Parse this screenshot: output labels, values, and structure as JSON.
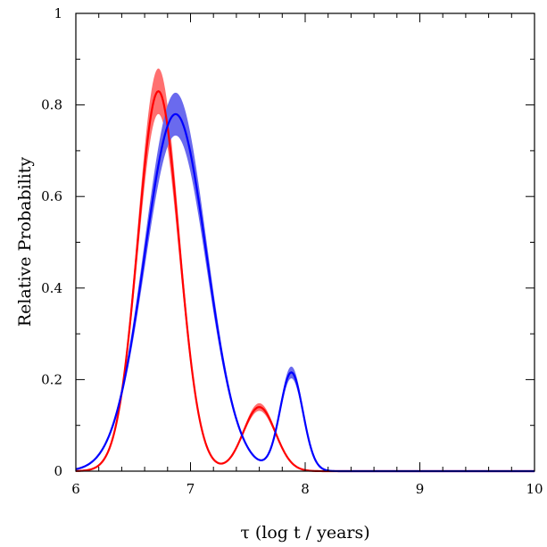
{
  "chart_data": {
    "type": "line",
    "xlabel": "τ (log t / years)",
    "ylabel": "Relative Probability",
    "xlim": [
      6,
      10
    ],
    "ylim": [
      0,
      1
    ],
    "x_ticks": [
      "6",
      "7",
      "8",
      "9",
      "10"
    ],
    "y_ticks": [
      "0",
      "0.2",
      "0.4",
      "0.6",
      "0.8",
      "1"
    ],
    "x_minor_step": 0.2,
    "y_minor_step": 0.1,
    "grid": false,
    "legend": "none",
    "series": [
      {
        "color": "#ff0000",
        "band_color": "#ff7070",
        "peaks": [
          {
            "center": 6.72,
            "peak": 0.83,
            "sigma": 0.18
          },
          {
            "center": 7.6,
            "peak": 0.14,
            "sigma": 0.14
          }
        ],
        "band_halfwidth_fraction": 0.06
      },
      {
        "color": "#0000ff",
        "band_color": "#6a6aee",
        "peaks": [
          {
            "center": 6.87,
            "peak": 0.78,
            "sigma": 0.27
          },
          {
            "center": 7.88,
            "peak": 0.215,
            "sigma": 0.1
          }
        ],
        "band_halfwidth_fraction": 0.06
      }
    ]
  }
}
